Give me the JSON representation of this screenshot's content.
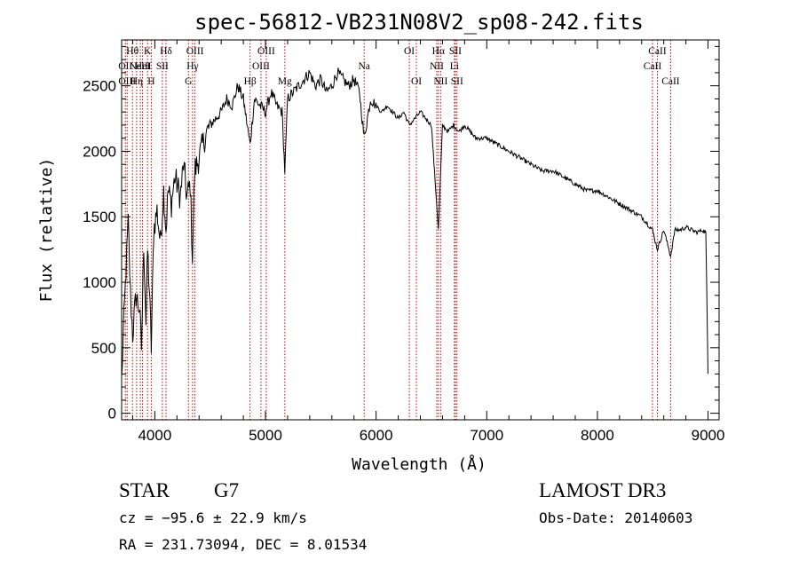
{
  "chart_data": {
    "type": "line",
    "title": "spec-56812-VB231N08V2_sp08-242.fits",
    "xlabel": "Wavelength (Å)",
    "ylabel": "Flux (relative)",
    "xlim": [
      3700,
      9100
    ],
    "ylim": [
      -50,
      2850
    ],
    "xticks": [
      4000,
      5000,
      6000,
      7000,
      8000,
      9000
    ],
    "yticks": [
      0,
      500,
      1000,
      1500,
      2000,
      2500
    ],
    "x_minor_step": 200,
    "y_minor_step": 100,
    "line_color": "#000000",
    "marker_color": "#cc0000",
    "spectrum": {
      "name": "flux",
      "x": [
        3700,
        3720,
        3740,
        3760,
        3780,
        3800,
        3830,
        3860,
        3880,
        3900,
        3920,
        3935,
        3950,
        3968,
        3990,
        4020,
        4050,
        4080,
        4101,
        4120,
        4150,
        4180,
        4200,
        4230,
        4260,
        4290,
        4320,
        4340,
        4360,
        4400,
        4450,
        4500,
        4550,
        4600,
        4650,
        4700,
        4750,
        4800,
        4861,
        4900,
        4950,
        5000,
        5050,
        5100,
        5150,
        5175,
        5200,
        5250,
        5300,
        5350,
        5400,
        5450,
        5500,
        5550,
        5600,
        5650,
        5700,
        5750,
        5800,
        5850,
        5892,
        5950,
        6000,
        6050,
        6100,
        6150,
        6200,
        6250,
        6300,
        6350,
        6400,
        6450,
        6500,
        6563,
        6600,
        6650,
        6700,
        6750,
        6800,
        6900,
        7000,
        7100,
        7200,
        7300,
        7400,
        7500,
        7600,
        7700,
        7800,
        7900,
        8000,
        8100,
        8200,
        8300,
        8400,
        8498,
        8542,
        8600,
        8662,
        8700,
        8750,
        8800,
        8850,
        8900,
        8950,
        8980,
        9000
      ],
      "y": [
        250,
        700,
        1100,
        1450,
        900,
        600,
        900,
        800,
        500,
        1300,
        700,
        1250,
        950,
        500,
        1400,
        1550,
        1300,
        1700,
        1400,
        1700,
        1600,
        1800,
        1750,
        1650,
        1900,
        1650,
        1750,
        1200,
        1850,
        1950,
        2100,
        2200,
        2250,
        2300,
        2400,
        2350,
        2500,
        2400,
        2050,
        2400,
        2350,
        2300,
        2450,
        2350,
        2300,
        1850,
        2400,
        2450,
        2500,
        2550,
        2600,
        2500,
        2550,
        2450,
        2500,
        2600,
        2550,
        2500,
        2550,
        2450,
        2100,
        2400,
        2350,
        2300,
        2350,
        2300,
        2250,
        2300,
        2200,
        2250,
        2300,
        2250,
        2200,
        1400,
        2200,
        2150,
        2200,
        2150,
        2200,
        2100,
        2100,
        2050,
        2000,
        1950,
        1900,
        1850,
        1850,
        1800,
        1750,
        1700,
        1700,
        1650,
        1600,
        1550,
        1500,
        1400,
        1250,
        1400,
        1200,
        1400,
        1400,
        1420,
        1400,
        1380,
        1400,
        1380,
        300
      ]
    },
    "spectral_lines": [
      {
        "x": 3734,
        "labels": [
          "OII"
        ],
        "row": 1
      },
      {
        "x": 3750,
        "labels": [
          "OIII"
        ],
        "row": 2
      },
      {
        "x": 3798,
        "labels": [
          "Hθ"
        ],
        "row": 0
      },
      {
        "x": 3835,
        "labels": [
          "Hη"
        ],
        "row": 2
      },
      {
        "x": 3869,
        "labels": [
          "NeIII"
        ],
        "row": 1
      },
      {
        "x": 3889,
        "labels": [
          "HeI"
        ],
        "row": 1
      },
      {
        "x": 3934,
        "labels": [
          "K"
        ],
        "row": 0
      },
      {
        "x": 3968,
        "labels": [
          "H"
        ],
        "row": 2
      },
      {
        "x": 4068,
        "labels": [
          "SII"
        ],
        "row": 1
      },
      {
        "x": 4101,
        "labels": [
          "Hδ"
        ],
        "row": 0
      },
      {
        "x": 4304,
        "labels": [
          "G"
        ],
        "row": 2
      },
      {
        "x": 4341,
        "labels": [
          "Hγ"
        ],
        "row": 1
      },
      {
        "x": 4363,
        "labels": [
          "OIII"
        ],
        "row": 0
      },
      {
        "x": 4861,
        "labels": [
          "Hβ"
        ],
        "row": 2
      },
      {
        "x": 4959,
        "labels": [
          "OIII"
        ],
        "row": 1
      },
      {
        "x": 5007,
        "labels": [
          "OIII"
        ],
        "row": 0
      },
      {
        "x": 5175,
        "labels": [
          "Mg"
        ],
        "row": 2
      },
      {
        "x": 5892,
        "labels": [
          "Na"
        ],
        "row": 1
      },
      {
        "x": 6300,
        "labels": [
          "OI"
        ],
        "row": 0
      },
      {
        "x": 6364,
        "labels": [
          "OI"
        ],
        "row": 2
      },
      {
        "x": 6548,
        "labels": [
          "NII"
        ],
        "row": 1
      },
      {
        "x": 6563,
        "labels": [
          "Hα"
        ],
        "row": 0
      },
      {
        "x": 6583,
        "labels": [
          "NII"
        ],
        "row": 2
      },
      {
        "x": 6708,
        "labels": [
          "Li"
        ],
        "row": 1
      },
      {
        "x": 6716,
        "labels": [
          "SII"
        ],
        "row": 0
      },
      {
        "x": 6731,
        "labels": [
          "SII"
        ],
        "row": 2
      },
      {
        "x": 8498,
        "labels": [
          "CaII"
        ],
        "row": 1
      },
      {
        "x": 8542,
        "labels": [
          "CaII"
        ],
        "row": 0
      },
      {
        "x": 8662,
        "labels": [
          "CaII"
        ],
        "row": 2
      }
    ]
  },
  "info": {
    "object_class": "STAR",
    "subclass": "G7",
    "survey": "LAMOST DR3",
    "cz": "cz = −95.6 ± 22.9 km/s",
    "obs_date": "Obs-Date: 20140603",
    "coords": "RA = 231.73094, DEC =   8.01534"
  }
}
